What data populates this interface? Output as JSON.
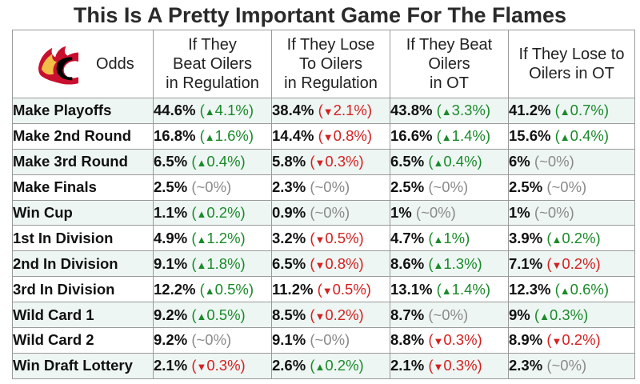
{
  "title": "This Is A Pretty Important Game For The Flames",
  "corner_label": "Odds",
  "colors": {
    "up": "#1a8a2a",
    "down": "#d42020",
    "flat": "#8a8a8a",
    "logo_red": "#c8102e",
    "logo_yellow": "#f1be48",
    "row_tint": "#eef6f3"
  },
  "chart_data": {
    "type": "table",
    "columns": [
      "If They\nBeat Oilers\nin Regulation",
      "If They Lose\nTo Oilers\nin Regulation",
      "If They Beat\nOilers\nin OT",
      "If They Lose to\nOilers in OT"
    ],
    "rows": [
      {
        "label": "Make Playoffs",
        "cells": [
          {
            "value": "44.6%",
            "change": "4.1%",
            "dir": "up"
          },
          {
            "value": "38.4%",
            "change": "2.1%",
            "dir": "down"
          },
          {
            "value": "43.8%",
            "change": "3.3%",
            "dir": "up"
          },
          {
            "value": "41.2%",
            "change": "0.7%",
            "dir": "up"
          }
        ]
      },
      {
        "label": "Make 2nd Round",
        "cells": [
          {
            "value": "16.8%",
            "change": "1.6%",
            "dir": "up"
          },
          {
            "value": "14.4%",
            "change": "0.8%",
            "dir": "down"
          },
          {
            "value": "16.6%",
            "change": "1.4%",
            "dir": "up"
          },
          {
            "value": "15.6%",
            "change": "0.4%",
            "dir": "up"
          }
        ]
      },
      {
        "label": "Make 3rd Round",
        "cells": [
          {
            "value": "6.5%",
            "change": "0.4%",
            "dir": "up"
          },
          {
            "value": "5.8%",
            "change": "0.3%",
            "dir": "down"
          },
          {
            "value": "6.5%",
            "change": "0.4%",
            "dir": "up"
          },
          {
            "value": "6%",
            "change": "0%",
            "dir": "flat"
          }
        ]
      },
      {
        "label": "Make Finals",
        "cells": [
          {
            "value": "2.5%",
            "change": "0%",
            "dir": "flat"
          },
          {
            "value": "2.3%",
            "change": "0%",
            "dir": "flat"
          },
          {
            "value": "2.5%",
            "change": "0%",
            "dir": "flat"
          },
          {
            "value": "2.5%",
            "change": "0%",
            "dir": "flat"
          }
        ]
      },
      {
        "label": "Win Cup",
        "cells": [
          {
            "value": "1.1%",
            "change": "0.2%",
            "dir": "up"
          },
          {
            "value": "0.9%",
            "change": "0%",
            "dir": "flat"
          },
          {
            "value": "1%",
            "change": "0%",
            "dir": "flat"
          },
          {
            "value": "1%",
            "change": "0%",
            "dir": "flat"
          }
        ]
      },
      {
        "label": "1st In Division",
        "cells": [
          {
            "value": "4.9%",
            "change": "1.2%",
            "dir": "up"
          },
          {
            "value": "3.2%",
            "change": "0.5%",
            "dir": "down"
          },
          {
            "value": "4.7%",
            "change": "1%",
            "dir": "up"
          },
          {
            "value": "3.9%",
            "change": "0.2%",
            "dir": "up"
          }
        ]
      },
      {
        "label": "2nd In Division",
        "cells": [
          {
            "value": "9.1%",
            "change": "1.8%",
            "dir": "up"
          },
          {
            "value": "6.5%",
            "change": "0.8%",
            "dir": "down"
          },
          {
            "value": "8.6%",
            "change": "1.3%",
            "dir": "up"
          },
          {
            "value": "7.1%",
            "change": "0.2%",
            "dir": "down"
          }
        ]
      },
      {
        "label": "3rd In Division",
        "cells": [
          {
            "value": "12.2%",
            "change": "0.5%",
            "dir": "up"
          },
          {
            "value": "11.2%",
            "change": "0.5%",
            "dir": "down"
          },
          {
            "value": "13.1%",
            "change": "1.4%",
            "dir": "up"
          },
          {
            "value": "12.3%",
            "change": "0.6%",
            "dir": "up"
          }
        ]
      },
      {
        "label": "Wild Card 1",
        "cells": [
          {
            "value": "9.2%",
            "change": "0.5%",
            "dir": "up"
          },
          {
            "value": "8.5%",
            "change": "0.2%",
            "dir": "down"
          },
          {
            "value": "8.7%",
            "change": "0%",
            "dir": "flat"
          },
          {
            "value": "9%",
            "change": "0.3%",
            "dir": "up"
          }
        ]
      },
      {
        "label": "Wild Card 2",
        "cells": [
          {
            "value": "9.2%",
            "change": "0%",
            "dir": "flat"
          },
          {
            "value": "9.1%",
            "change": "0%",
            "dir": "flat"
          },
          {
            "value": "8.8%",
            "change": "0.3%",
            "dir": "down"
          },
          {
            "value": "8.9%",
            "change": "0.2%",
            "dir": "down"
          }
        ]
      },
      {
        "label": "Win Draft Lottery",
        "cells": [
          {
            "value": "2.1%",
            "change": "0.3%",
            "dir": "down"
          },
          {
            "value": "2.6%",
            "change": "0.2%",
            "dir": "up"
          },
          {
            "value": "2.1%",
            "change": "0.3%",
            "dir": "down"
          },
          {
            "value": "2.3%",
            "change": "0%",
            "dir": "flat"
          }
        ]
      }
    ]
  }
}
